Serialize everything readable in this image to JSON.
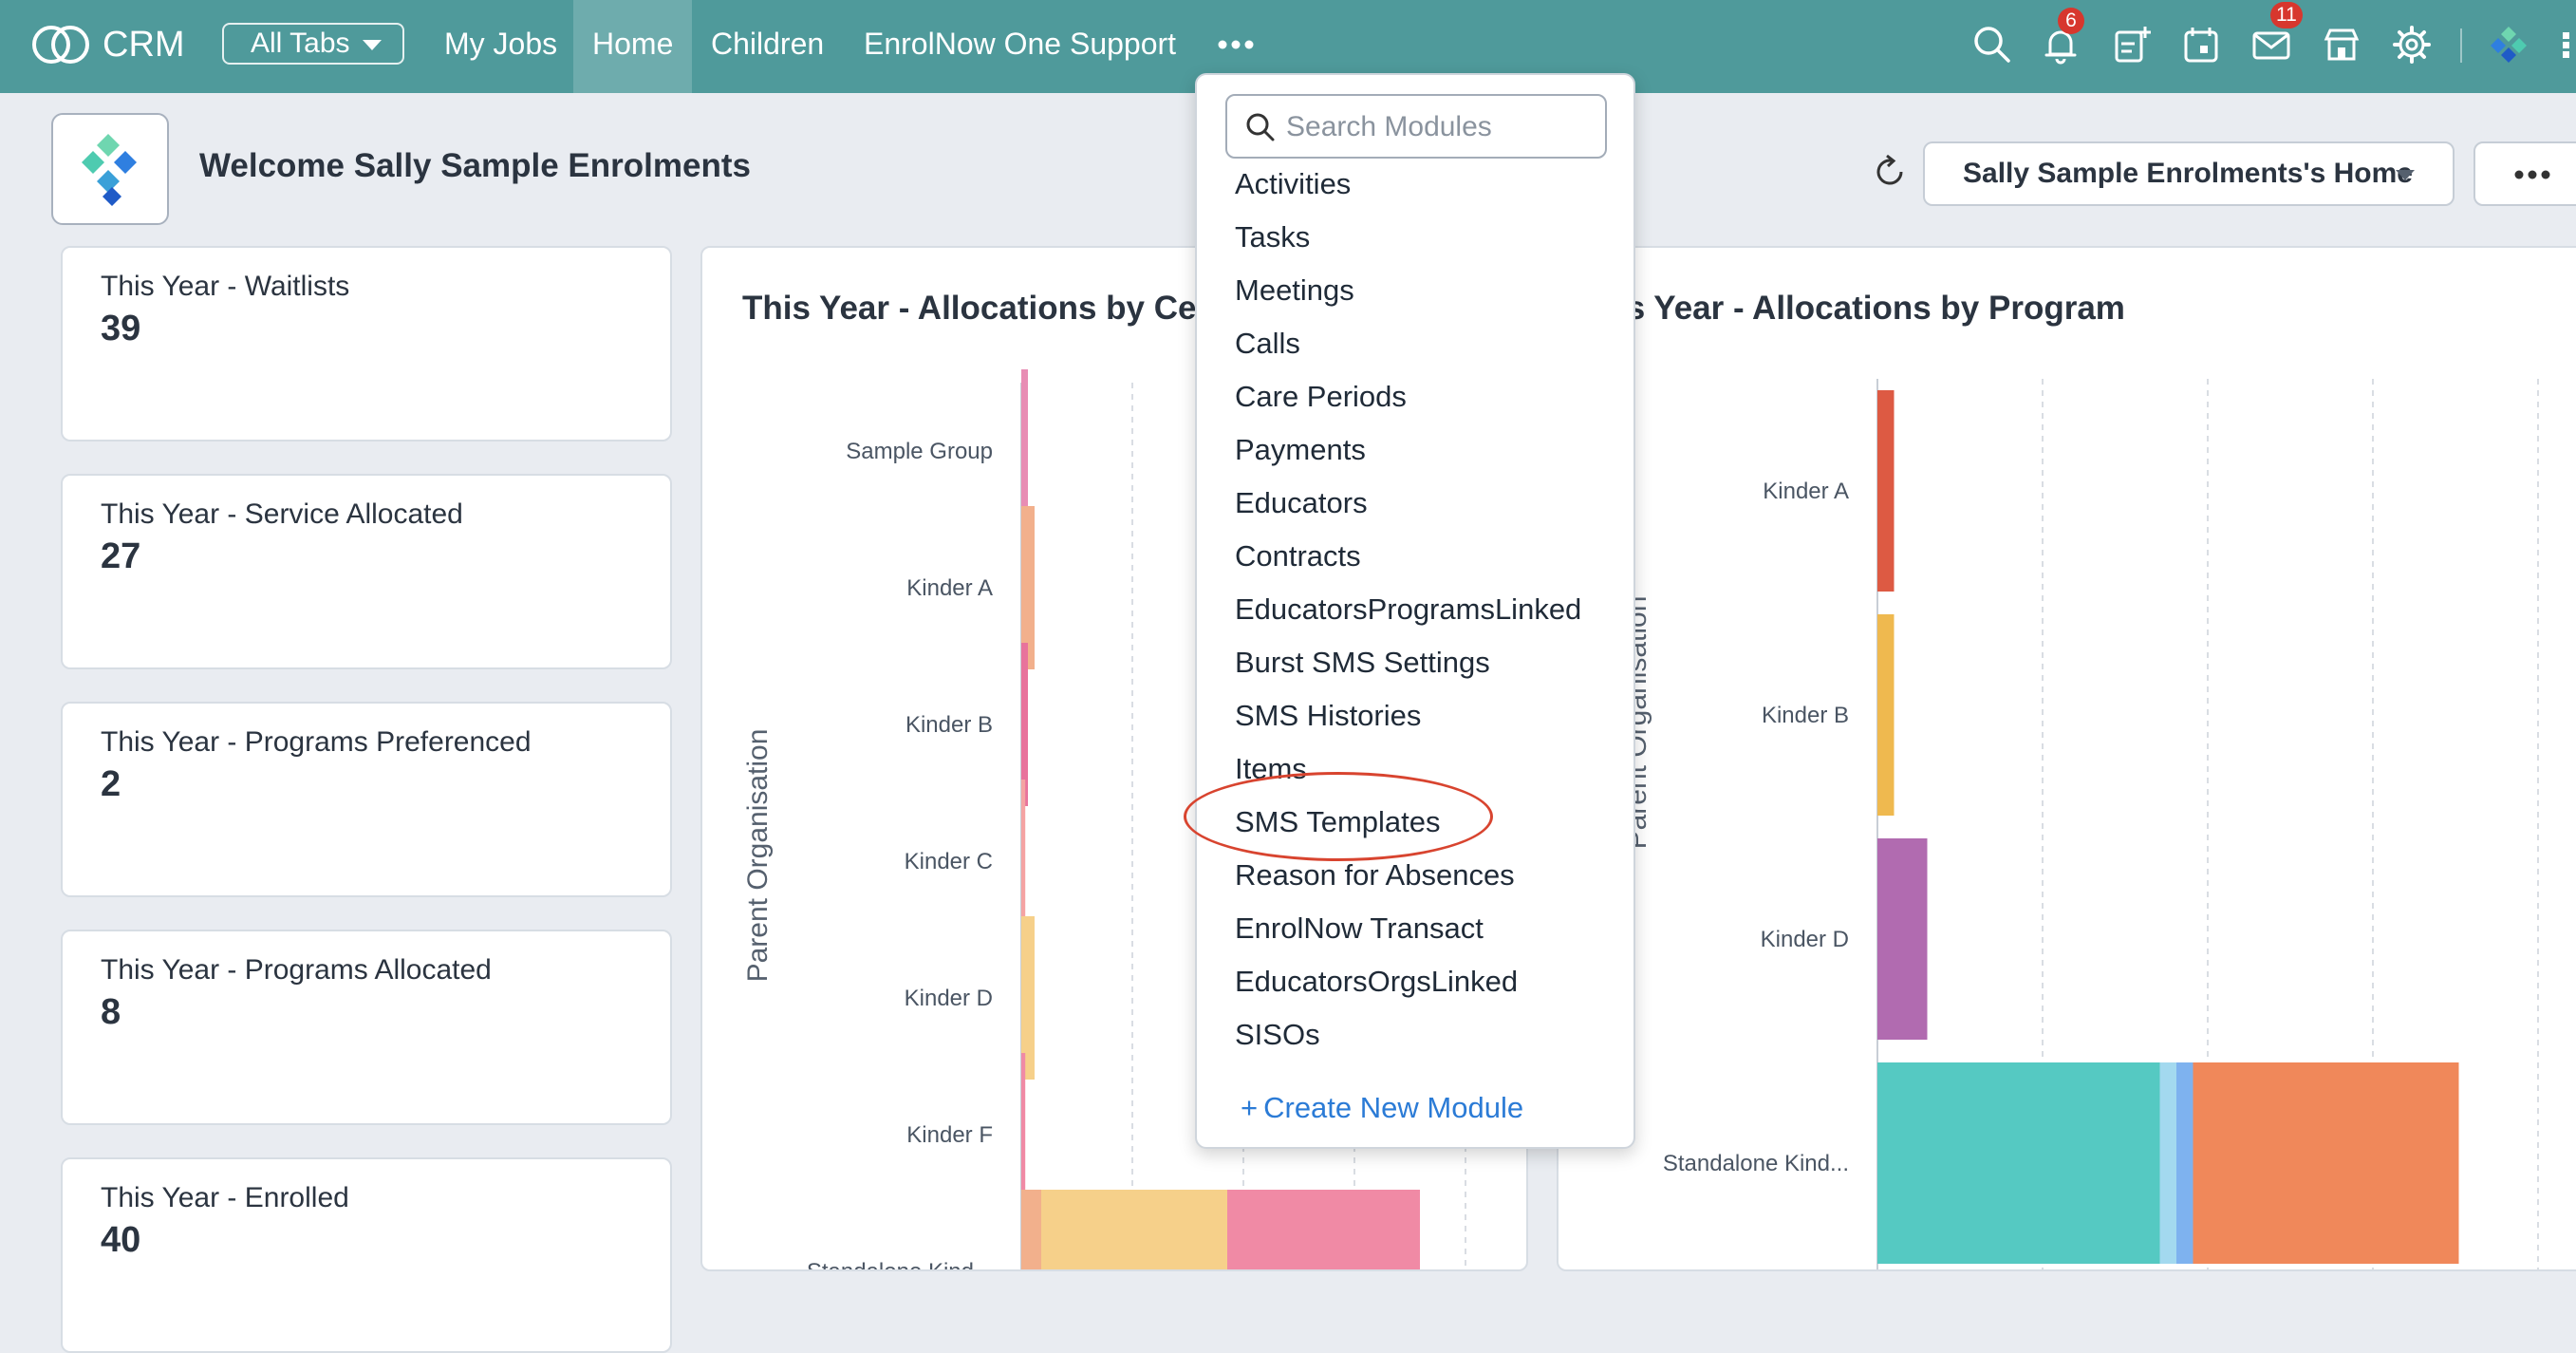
{
  "topbar": {
    "brand": "CRM",
    "all_tabs_label": "All Tabs",
    "nav": [
      "My Jobs",
      "Home",
      "Children",
      "EnrolNow One Support"
    ],
    "active_nav": "Home",
    "icons": [
      "search-icon",
      "bell-icon",
      "add-note-icon",
      "calendar-icon",
      "mail-icon",
      "store-icon",
      "gear-icon",
      "org-logo-icon"
    ],
    "notification_count": "6",
    "mail_count": "11",
    "bar_color": "#4f9a9b"
  },
  "header": {
    "welcome": "Welcome Sally Sample Enrolments",
    "home_selector": "Sally Sample Enrolments's Home"
  },
  "cards": [
    {
      "label": "This Year - Waitlists",
      "value": "39"
    },
    {
      "label": "This Year - Service Allocated",
      "value": "27"
    },
    {
      "label": "This Year - Programs Preferenced",
      "value": "2"
    },
    {
      "label": "This Year - Programs Allocated",
      "value": "8"
    },
    {
      "label": "This Year - Enrolled",
      "value": "40"
    }
  ],
  "charts": {
    "left_title": "This Year - Allocations by Cent",
    "right_title": "is Year - Allocations by Program"
  },
  "chart_data": [
    {
      "type": "bar",
      "orientation": "horizontal",
      "stacked": true,
      "title": "This Year - Allocations by Cent",
      "ylabel": "Parent Organisation",
      "categories": [
        "Sample Group",
        "Kinder A",
        "Kinder B",
        "Kinder C",
        "Kinder D",
        "Kinder F",
        "Standalone Kind..."
      ],
      "series": [
        {
          "color": "#e88db4",
          "values": [
            0.05,
            0,
            0,
            0,
            0,
            0,
            0
          ]
        },
        {
          "color": "#f2b08c",
          "values": [
            0,
            0.1,
            0,
            0,
            0,
            0,
            0.15
          ]
        },
        {
          "color": "#e8739c",
          "values": [
            0,
            0,
            0.05,
            0,
            0,
            0,
            0
          ]
        },
        {
          "color": "#f5a3a3",
          "values": [
            0,
            0,
            0,
            0.03,
            0,
            0,
            0
          ]
        },
        {
          "color": "#f6d08a",
          "values": [
            0,
            0,
            0,
            0,
            0.1,
            0,
            1.4
          ]
        },
        {
          "color": "#f08aa5",
          "values": [
            0,
            0,
            0,
            0,
            0,
            0.03,
            1.45
          ]
        }
      ],
      "grid": true
    },
    {
      "type": "bar",
      "orientation": "horizontal",
      "stacked": true,
      "title": "is Year - Allocations by Program",
      "ylabel": "Parent Organisation",
      "categories": [
        "Kinder A",
        "Kinder B",
        "Kinder D",
        "Standalone Kind..."
      ],
      "series": [
        {
          "color": "#dd5a43",
          "values": [
            0.1,
            0,
            0,
            0
          ]
        },
        {
          "color": "#efb94f",
          "values": [
            0,
            0.1,
            0,
            0
          ]
        },
        {
          "color": "#b16bb0",
          "values": [
            0,
            0,
            0.3,
            0
          ]
        },
        {
          "color": "#55c9c2",
          "values": [
            0,
            0,
            0,
            1.7
          ]
        },
        {
          "color": "#a3d9ef",
          "values": [
            0,
            0,
            0,
            0.1
          ]
        },
        {
          "color": "#7eb2ef",
          "values": [
            0,
            0,
            0,
            0.1
          ]
        },
        {
          "color": "#f0885a",
          "values": [
            0,
            0,
            0,
            1.6
          ]
        }
      ],
      "grid": true
    }
  ],
  "modules_menu": {
    "search_placeholder": "Search Modules",
    "items": [
      "Activities",
      "Tasks",
      "Meetings",
      "Calls",
      "Care Periods",
      "Payments",
      "Educators",
      "Contracts",
      "EducatorsProgramsLinked",
      "Burst SMS Settings",
      "SMS Histories",
      "Items",
      "SMS Templates",
      "Reason for Absences",
      "EnrolNow Transact",
      "EducatorsOrgsLinked",
      "SISOs"
    ],
    "highlighted_item": "SMS Templates",
    "create_label": "Create New Module",
    "highlight_color": "#d8442f"
  }
}
